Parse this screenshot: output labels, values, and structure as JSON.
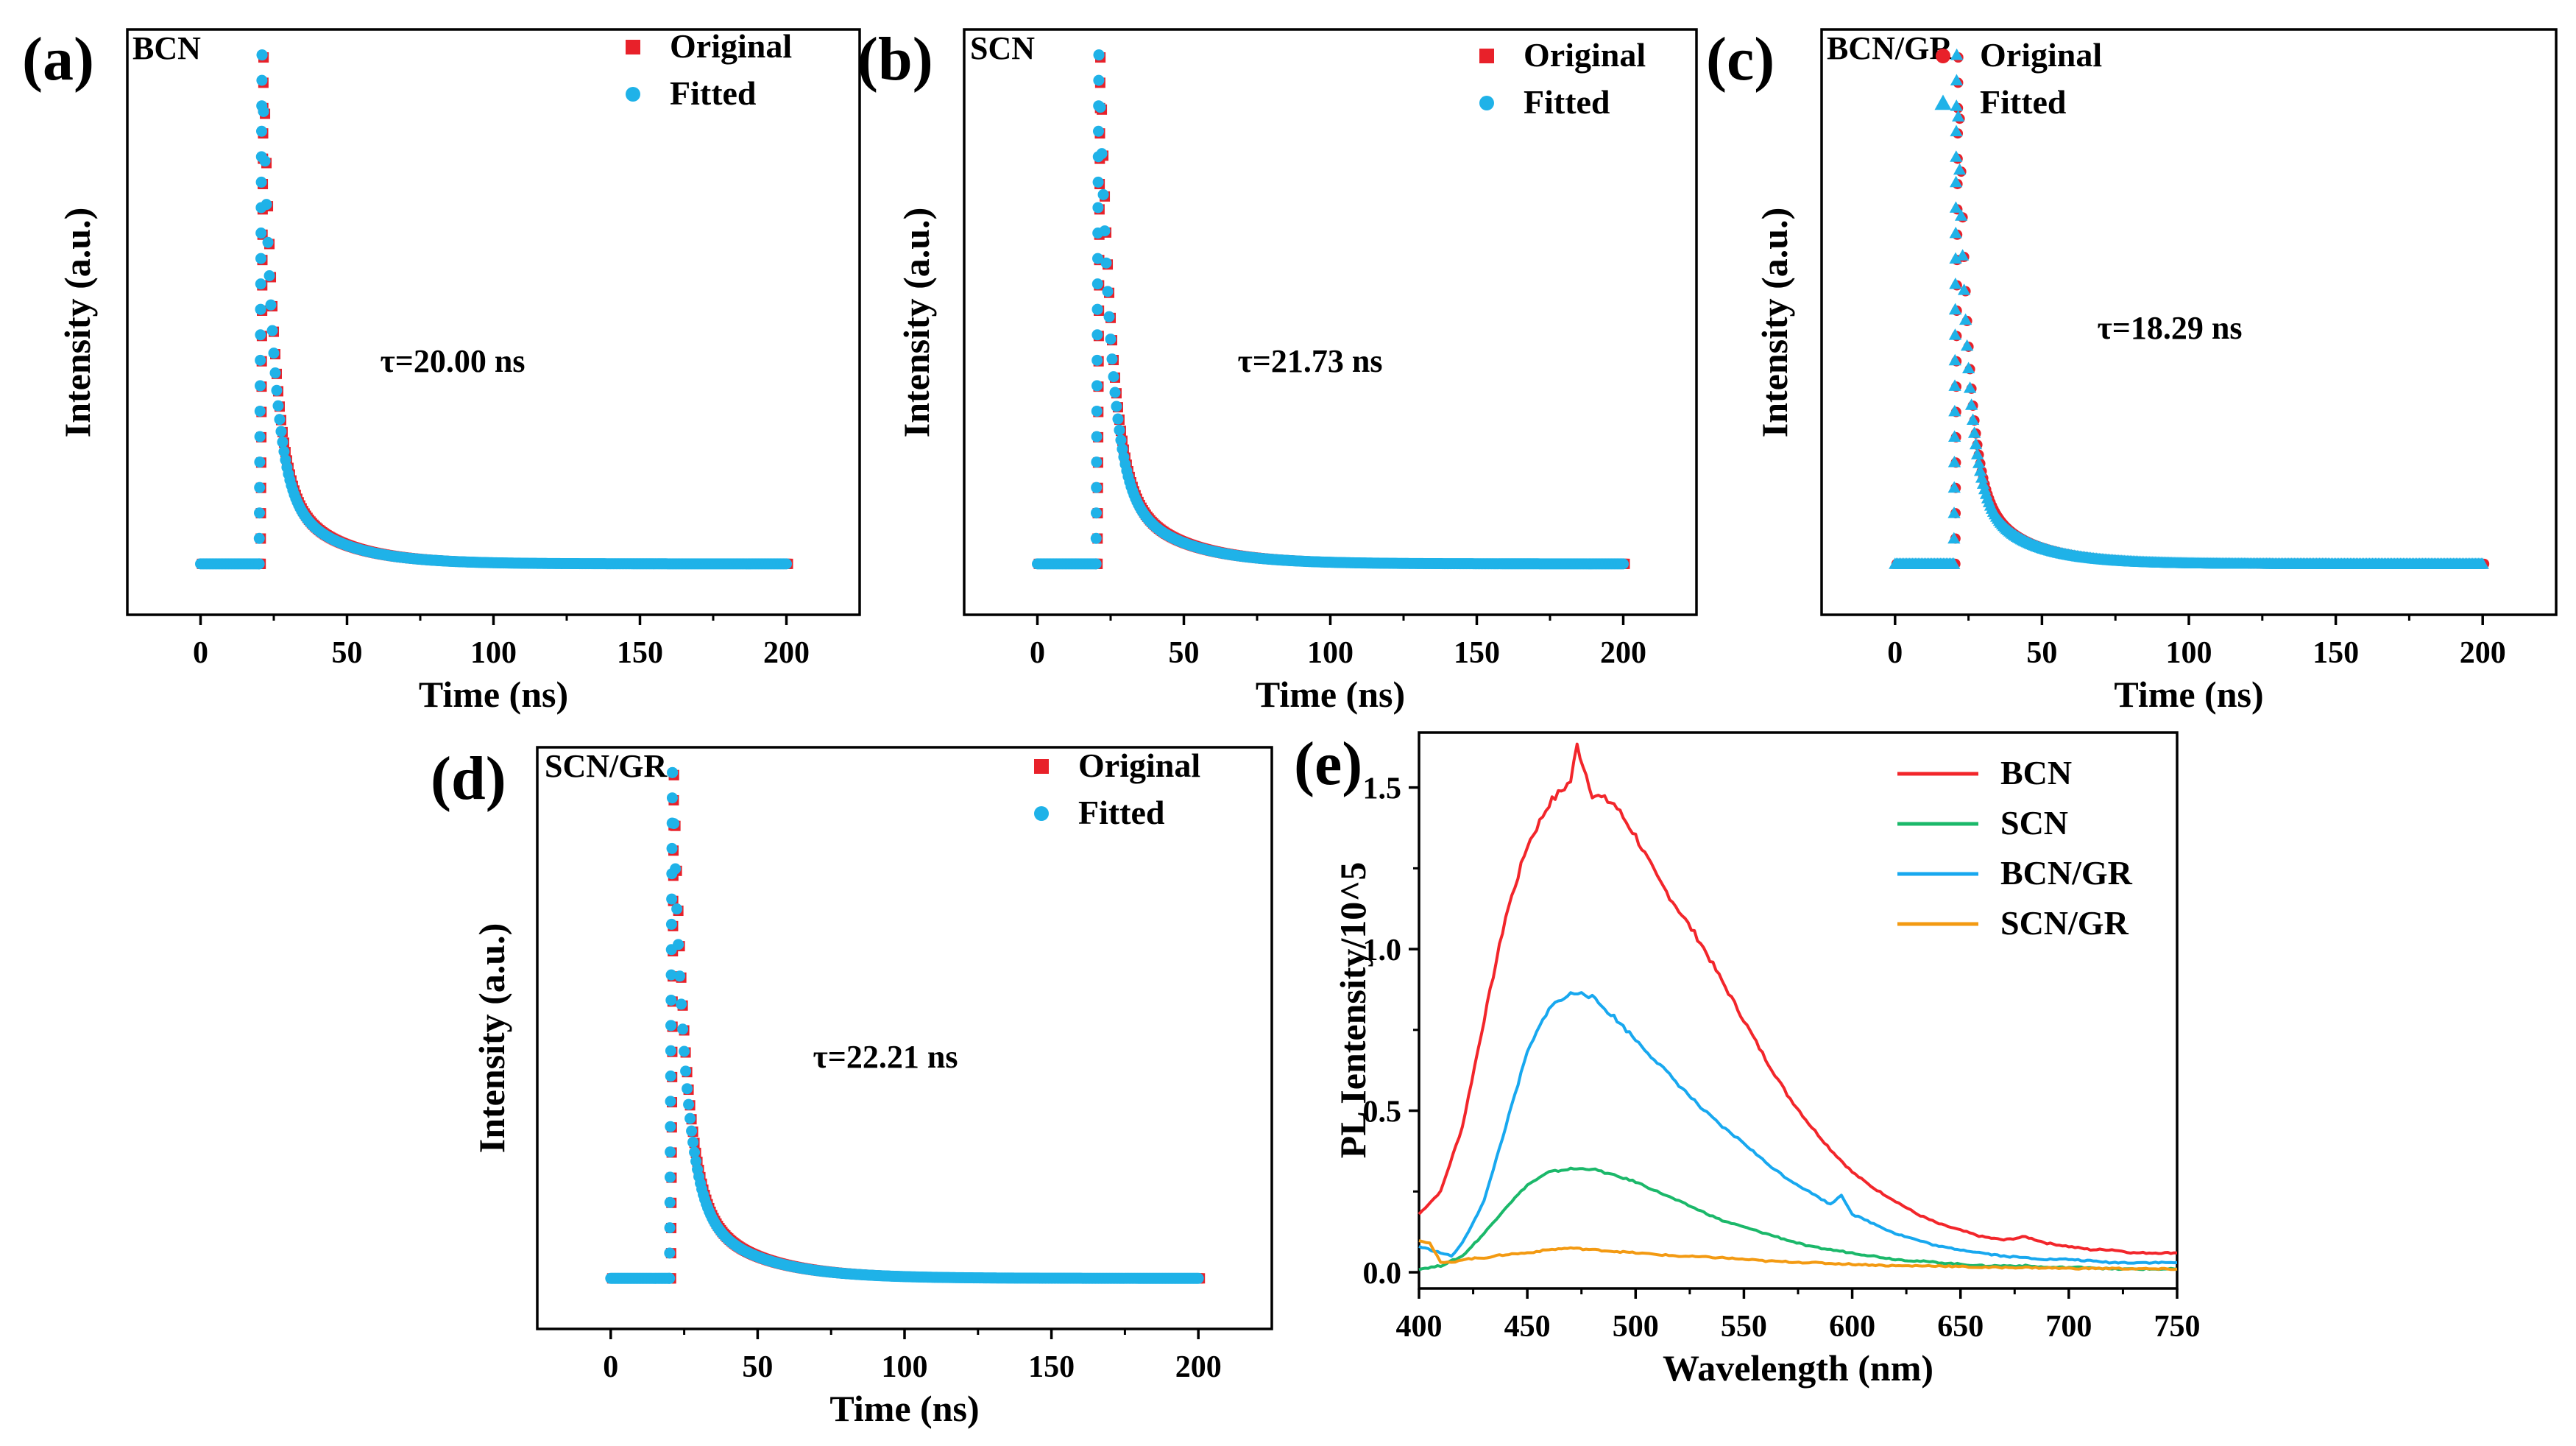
{
  "figure": {
    "panel_labels": [
      "(a)",
      "(b)",
      "(c)",
      "(d)",
      "(e)"
    ]
  },
  "chart_data": [
    {
      "id": "a",
      "type": "scatter",
      "title": "",
      "sample_label": "BCN",
      "panel_label": "(a)",
      "xlabel": "Time (ns)",
      "ylabel": "Intensity (a.u.)",
      "xlim": [
        -25,
        225
      ],
      "xticks": [
        0,
        50,
        100,
        150,
        200
      ],
      "ylim": [
        -0.1,
        1.05
      ],
      "legend": {
        "placement": "top-right",
        "entries": [
          "Original",
          "Fitted"
        ]
      },
      "series": [
        {
          "name": "Original",
          "marker": "square",
          "color": "#e8212a"
        },
        {
          "name": "Fitted",
          "marker": "circle",
          "color": "#1fb2e8"
        }
      ],
      "decay": {
        "onset_ns": 20,
        "peak_ns": 21,
        "tau_ns": 20.0,
        "tail_level": 0.0
      },
      "annotation": "τ=20.00 ns"
    },
    {
      "id": "b",
      "type": "scatter",
      "title": "",
      "sample_label": "SCN",
      "panel_label": "(b)",
      "xlabel": "Time (ns)",
      "ylabel": "Intensity (a.u.)",
      "xlim": [
        -25,
        225
      ],
      "xticks": [
        0,
        50,
        100,
        150,
        200
      ],
      "ylim": [
        -0.1,
        1.05
      ],
      "legend": {
        "placement": "top-right",
        "entries": [
          "Original",
          "Fitted"
        ]
      },
      "series": [
        {
          "name": "Original",
          "marker": "square",
          "color": "#e8212a"
        },
        {
          "name": "Fitted",
          "marker": "circle",
          "color": "#1fb2e8"
        }
      ],
      "decay": {
        "onset_ns": 20,
        "peak_ns": 21,
        "tau_ns": 21.73,
        "tail_level": 0.0
      },
      "annotation": "τ=21.73 ns"
    },
    {
      "id": "c",
      "type": "scatter",
      "title": "",
      "sample_label": "BCN/GR",
      "panel_label": "(c)",
      "xlabel": "Time (ns)",
      "ylabel": "Intensity (a.u.)",
      "xlim": [
        -25,
        225
      ],
      "xticks": [
        0,
        50,
        100,
        150,
        200
      ],
      "ylim": [
        -0.1,
        1.05
      ],
      "legend": {
        "placement": "top-right",
        "entries": [
          "Original",
          "Fitted"
        ]
      },
      "series": [
        {
          "name": "Original",
          "marker": "circle",
          "color": "#e8212a"
        },
        {
          "name": "Fitted",
          "marker": "triangle",
          "color": "#1fb2e8"
        }
      ],
      "decay": {
        "onset_ns": 20,
        "peak_ns": 21,
        "tau_ns": 18.29,
        "tail_level": 0.0
      },
      "annotation": "τ=18.29 ns"
    },
    {
      "id": "d",
      "type": "scatter",
      "title": "",
      "sample_label": "SCN/GR",
      "panel_label": "(d)",
      "xlabel": "Time (ns)",
      "ylabel": "Intensity (a.u.)",
      "xlim": [
        -25,
        225
      ],
      "xticks": [
        0,
        50,
        100,
        150,
        200
      ],
      "ylim": [
        -0.1,
        1.05
      ],
      "legend": {
        "placement": "top-right",
        "entries": [
          "Original",
          "Fitted"
        ]
      },
      "series": [
        {
          "name": "Original",
          "marker": "square",
          "color": "#e8212a"
        },
        {
          "name": "Fitted",
          "marker": "circle",
          "color": "#1fb2e8"
        }
      ],
      "decay": {
        "onset_ns": 20,
        "peak_ns": 21,
        "tau_ns": 22.21,
        "tail_level": 0.0
      },
      "annotation": "τ=22.21 ns"
    },
    {
      "id": "e",
      "type": "line",
      "title": "",
      "panel_label": "(e)",
      "xlabel": "Wavelength (nm)",
      "ylabel": "PL Ientensity/10^5",
      "xlim": [
        400,
        750
      ],
      "ylim": [
        -0.05,
        1.67
      ],
      "xticks": [
        400,
        450,
        500,
        550,
        600,
        650,
        700,
        750
      ],
      "yticks": [
        0.0,
        0.5,
        1.0,
        1.5
      ],
      "ytick_labels": [
        "0.0",
        "0.5",
        "1.0",
        "1.5"
      ],
      "legend": {
        "placement": "top-right"
      },
      "series": [
        {
          "name": "BCN",
          "color": "#f2262b",
          "x": [
            400,
            410,
            420,
            430,
            440,
            450,
            460,
            470,
            473,
            480,
            490,
            500,
            510,
            520,
            530,
            540,
            550,
            560,
            570,
            580,
            590,
            600,
            610,
            620,
            630,
            640,
            650,
            660,
            670,
            680,
            690,
            700,
            710,
            720,
            730,
            740,
            750
          ],
          "values": [
            0.18,
            0.25,
            0.45,
            0.78,
            1.1,
            1.32,
            1.45,
            1.52,
            1.63,
            1.48,
            1.45,
            1.35,
            1.22,
            1.12,
            1.02,
            0.9,
            0.78,
            0.66,
            0.55,
            0.46,
            0.38,
            0.31,
            0.26,
            0.22,
            0.18,
            0.15,
            0.13,
            0.11,
            0.1,
            0.11,
            0.09,
            0.08,
            0.07,
            0.07,
            0.06,
            0.06,
            0.06
          ]
        },
        {
          "name": "SCN",
          "color": "#1bb86a",
          "x": [
            400,
            410,
            420,
            430,
            440,
            450,
            460,
            470,
            480,
            490,
            500,
            510,
            520,
            530,
            540,
            550,
            560,
            570,
            580,
            590,
            600,
            610,
            620,
            630,
            640,
            650,
            660,
            670,
            680,
            690,
            700,
            710,
            720,
            730,
            740,
            750
          ],
          "values": [
            0.01,
            0.02,
            0.05,
            0.12,
            0.2,
            0.27,
            0.31,
            0.32,
            0.32,
            0.3,
            0.28,
            0.25,
            0.22,
            0.19,
            0.16,
            0.14,
            0.12,
            0.1,
            0.08,
            0.07,
            0.06,
            0.05,
            0.04,
            0.035,
            0.03,
            0.025,
            0.02,
            0.02,
            0.02,
            0.015,
            0.015,
            0.015,
            0.01,
            0.01,
            0.01,
            0.01
          ]
        },
        {
          "name": "BCN/GR",
          "color": "#18a8ef",
          "x": [
            400,
            410,
            415,
            420,
            430,
            440,
            450,
            460,
            470,
            475,
            480,
            490,
            500,
            510,
            520,
            530,
            540,
            550,
            560,
            570,
            580,
            590,
            595,
            600,
            610,
            620,
            630,
            640,
            650,
            660,
            670,
            680,
            690,
            700,
            710,
            720,
            730,
            740,
            750
          ],
          "values": [
            0.08,
            0.06,
            0.05,
            0.09,
            0.22,
            0.45,
            0.68,
            0.82,
            0.86,
            0.87,
            0.85,
            0.79,
            0.72,
            0.65,
            0.58,
            0.51,
            0.45,
            0.4,
            0.34,
            0.29,
            0.25,
            0.21,
            0.24,
            0.18,
            0.15,
            0.12,
            0.1,
            0.08,
            0.07,
            0.06,
            0.05,
            0.045,
            0.04,
            0.04,
            0.035,
            0.03,
            0.03,
            0.03,
            0.03
          ]
        },
        {
          "name": "SCN/GR",
          "color": "#f39a12",
          "x": [
            400,
            405,
            410,
            415,
            420,
            430,
            440,
            450,
            460,
            470,
            480,
            490,
            500,
            520,
            540,
            560,
            580,
            600,
            620,
            640,
            660,
            680,
            700,
            720,
            740,
            750
          ],
          "values": [
            0.1,
            0.09,
            0.03,
            0.03,
            0.04,
            0.045,
            0.055,
            0.06,
            0.07,
            0.075,
            0.07,
            0.065,
            0.06,
            0.05,
            0.045,
            0.035,
            0.03,
            0.025,
            0.02,
            0.02,
            0.015,
            0.015,
            0.012,
            0.012,
            0.01,
            0.01
          ]
        }
      ]
    }
  ]
}
